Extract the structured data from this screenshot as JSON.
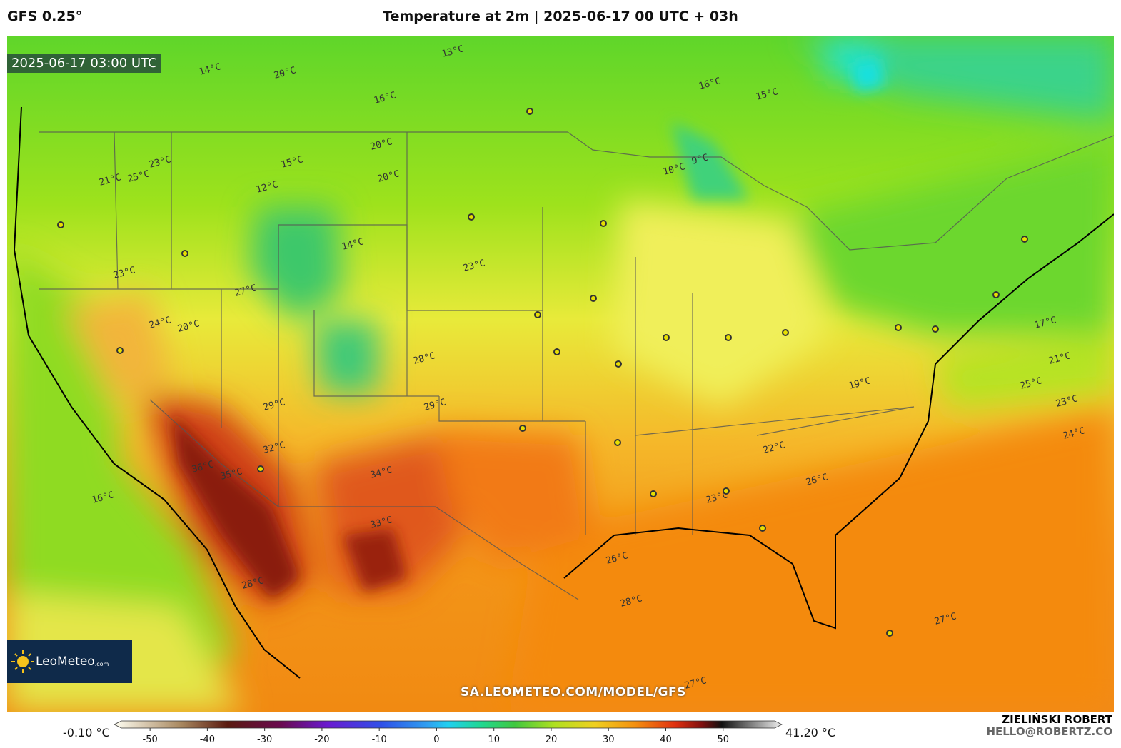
{
  "header": {
    "model": "GFS 0.25°",
    "title": "Temperature at 2m | 2025-06-17 00 UTC + 03h"
  },
  "timestamp": "2025-06-17 03:00 UTC",
  "logo": {
    "name": "LeoMeteo",
    "suffix": ".com"
  },
  "watermark": "SA.LEOMETEO.COM/MODEL/GFS",
  "colorbar": {
    "min_label": "-0.10 °C",
    "max_label": "41.20 °C",
    "lim": [
      -55,
      59
    ],
    "ticks": [
      -50,
      -40,
      -30,
      -20,
      -10,
      0,
      10,
      20,
      30,
      40,
      50
    ]
  },
  "credit": {
    "name": "ZIELIŃSKI ROBERT",
    "email": "HELLO@ROBERTZ.CO"
  },
  "map_labels": [
    "20°C",
    "16°C",
    "15°C",
    "13°C",
    "14°C",
    "16°C",
    "9°C",
    "10°C",
    "20°C",
    "20°C",
    "15°C",
    "12°C",
    "25°C",
    "23°C",
    "14°C",
    "21°C",
    "24°C",
    "20°C",
    "27°C",
    "23°C",
    "23°C",
    "28°C",
    "29°C",
    "36°C",
    "35°C",
    "34°C",
    "33°C",
    "32°C",
    "26°C",
    "29°C",
    "23°C",
    "22°C",
    "26°C",
    "17°C",
    "21°C",
    "25°C",
    "23°C",
    "24°C",
    "28°C",
    "27°C",
    "27°C",
    "16°C",
    "19°C",
    "28°C"
  ]
}
